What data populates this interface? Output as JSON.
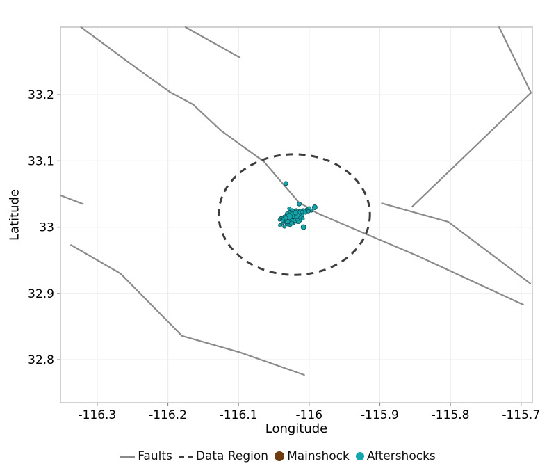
{
  "chart_data": {
    "type": "scatter",
    "title": "",
    "xlabel": "Longitude",
    "ylabel": "Latitude",
    "xlim": [
      -116.352,
      -115.684
    ],
    "ylim": [
      32.735,
      33.302
    ],
    "xticks": [
      -116.3,
      -116.2,
      -116.1,
      -116,
      -115.9,
      -115.8,
      -115.7
    ],
    "xtick_labels": [
      "-116.3",
      "-116.2",
      "-116.1",
      "-116",
      "-115.9",
      "-115.8",
      "-115.7"
    ],
    "yticks": [
      33.2,
      33.1,
      33,
      32.9,
      32.8
    ],
    "ytick_labels": [
      "33.2",
      "33.1",
      "33",
      "32.9",
      "32.8"
    ],
    "grid": true,
    "legend_position": "bottom",
    "colors": {
      "fault": "#8a8a8a",
      "data_region": "#3d3d3d",
      "mainshock": "#6f3a0d",
      "aftershock": "#14a5ac",
      "aftershock_edge": "#0b5357",
      "grid": "#ececec",
      "panel_border": "#c2c2c2",
      "tick": "#8e8e8e",
      "text": "#000000"
    },
    "faults": [
      [
        [
          -116.323,
          33.302
        ],
        [
          -116.248,
          33.243
        ],
        [
          -116.197,
          33.204
        ],
        [
          -116.164,
          33.185
        ],
        [
          -116.125,
          33.146
        ],
        [
          -116.064,
          33.099
        ],
        [
          -116.015,
          33.038
        ],
        [
          -115.99,
          33.022
        ],
        [
          -115.916,
          32.988
        ],
        [
          -115.847,
          32.957
        ],
        [
          -115.697,
          32.883
        ]
      ],
      [
        [
          -116.175,
          33.302
        ],
        [
          -116.098,
          33.256
        ]
      ],
      [
        [
          -116.352,
          33.048
        ],
        [
          -116.32,
          33.035
        ]
      ],
      [
        [
          -116.337,
          32.973
        ],
        [
          -116.267,
          32.93
        ],
        [
          -116.18,
          32.836
        ],
        [
          -116.098,
          32.811
        ],
        [
          -116.007,
          32.777
        ]
      ],
      [
        [
          -115.731,
          33.302
        ],
        [
          -115.686,
          33.203
        ],
        [
          -115.854,
          33.031
        ]
      ],
      [
        [
          -115.897,
          33.036
        ],
        [
          -115.803,
          33.008
        ],
        [
          -115.687,
          32.915
        ]
      ]
    ],
    "data_region": {
      "center_lon": -116.021,
      "center_lat": 33.019,
      "radius_lon": 0.107,
      "radius_lat": 0.091,
      "dash": [
        10,
        8
      ],
      "stroke_width": 3
    },
    "mainshock": {
      "lon": -116.024,
      "lat": 33.017,
      "radius_px": 7
    },
    "aftershocks": [
      [
        -116.033,
        33.066,
        3
      ],
      [
        -116.014,
        33.035,
        3
      ],
      [
        -115.992,
        33.03,
        3.5
      ],
      [
        -116.003,
        33.026,
        3
      ],
      [
        -115.997,
        33.025,
        2.5
      ],
      [
        -116.008,
        33.025,
        3
      ],
      [
        -116.012,
        33.023,
        4
      ],
      [
        -116.018,
        33.025,
        3
      ],
      [
        -116.022,
        33.021,
        4.5
      ],
      [
        -116.027,
        33.022,
        3
      ],
      [
        -116.031,
        33.02,
        3
      ],
      [
        -116.035,
        33.016,
        2.5
      ],
      [
        -116.039,
        33.014,
        2.5
      ],
      [
        -116.03,
        33.014,
        4
      ],
      [
        -116.025,
        33.015,
        5
      ],
      [
        -116.02,
        33.013,
        4
      ],
      [
        -116.015,
        33.015,
        3
      ],
      [
        -116.01,
        33.018,
        3
      ],
      [
        -116.034,
        33.01,
        3
      ],
      [
        -116.028,
        33.009,
        4
      ],
      [
        -116.023,
        33.007,
        3.5
      ],
      [
        -116.018,
        33.009,
        3
      ],
      [
        -116.013,
        33.01,
        2.5
      ],
      [
        -116.037,
        33.007,
        2.5
      ],
      [
        -116.031,
        33.005,
        3
      ],
      [
        -116.027,
        33.004,
        3
      ],
      [
        -116.041,
        33.003,
        2.5
      ],
      [
        -116.035,
        33.001,
        2.5
      ],
      [
        -116.008,
        33.0,
        3.5
      ],
      [
        -116.04,
        33.014,
        2
      ],
      [
        -116.024,
        33.025,
        3
      ],
      [
        -116.028,
        33.028,
        2.5
      ],
      [
        -116.018,
        33.02,
        4
      ],
      [
        -116.014,
        33.021,
        3.5
      ],
      [
        -116.005,
        33.022,
        2.5
      ],
      [
        -116.0,
        33.028,
        3
      ],
      [
        -116.032,
        33.012,
        3.5
      ],
      [
        -116.036,
        33.012,
        2.5
      ],
      [
        -116.025,
        33.011,
        4.5
      ],
      [
        -116.02,
        33.01,
        3
      ],
      [
        -116.016,
        33.012,
        3.5
      ],
      [
        -116.03,
        33.008,
        3
      ],
      [
        -116.038,
        33.009,
        2
      ],
      [
        -116.023,
        33.018,
        5
      ],
      [
        -116.017,
        33.017,
        4
      ],
      [
        -116.012,
        33.014,
        3
      ],
      [
        -116.028,
        33.016,
        4.5
      ],
      [
        -116.033,
        33.014,
        3
      ],
      [
        -116.019,
        33.022,
        3.5
      ],
      [
        -116.009,
        33.013,
        2.5
      ],
      [
        -116.042,
        33.011,
        2
      ],
      [
        -116.025,
        33.006,
        3
      ],
      [
        -116.015,
        33.008,
        2.5
      ],
      [
        -116.01,
        33.023,
        2.5
      ],
      [
        -116.001,
        33.024,
        2.5
      ]
    ]
  },
  "legend": {
    "items": [
      {
        "label": "Faults",
        "swatch": "line",
        "color": "#8a8a8a"
      },
      {
        "label": "Data Region",
        "swatch": "dashes",
        "color": "#3d3d3d"
      },
      {
        "label": "Mainshock",
        "swatch": "dot-big",
        "color": "#6f3a0d"
      },
      {
        "label": "Aftershocks",
        "swatch": "dot-small",
        "color": "#14a5ac"
      }
    ]
  }
}
